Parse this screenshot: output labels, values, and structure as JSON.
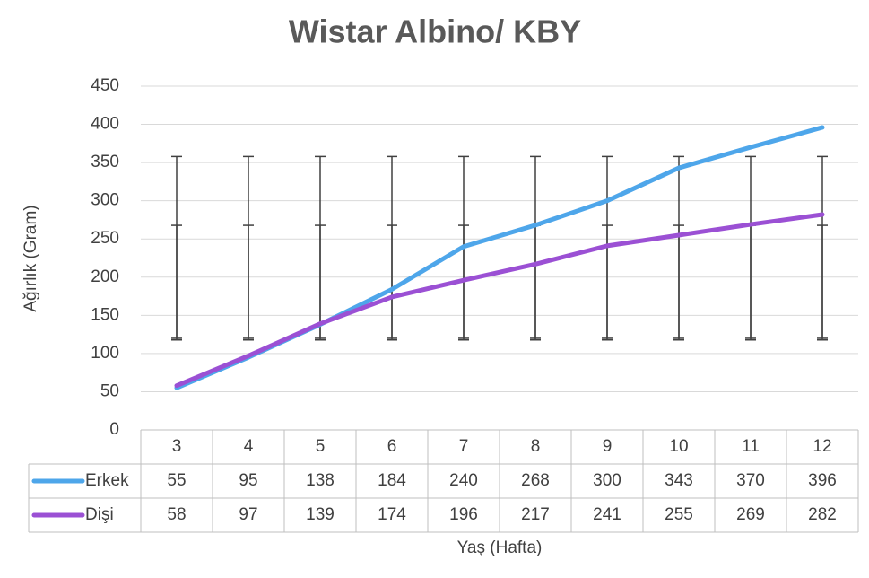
{
  "chart_data": {
    "type": "line",
    "title": "Wistar Albino/ KBY",
    "x_label": "Yaş (Hafta)",
    "y_label": "Ağırlık (Gram)",
    "categories": [
      "3",
      "4",
      "5",
      "6",
      "7",
      "8",
      "9",
      "10",
      "11",
      "12"
    ],
    "series": [
      {
        "name": "Erkek",
        "color": "#4ea6ea",
        "values": [
          55,
          95,
          138,
          184,
          240,
          268,
          300,
          343,
          370,
          396
        ],
        "error_bars": {
          "center": 238.9,
          "error": 119
        }
      },
      {
        "name": "Dişi",
        "color": "#9b50d4",
        "values": [
          58,
          97,
          139,
          174,
          196,
          217,
          241,
          255,
          269,
          282
        ],
        "error_bars": {
          "center": 192.8,
          "error": 75
        }
      }
    ],
    "ylim": [
      0,
      450
    ],
    "yticks": [
      0,
      50,
      100,
      150,
      200,
      250,
      300,
      350,
      400,
      450
    ],
    "grid": true,
    "data_table": true
  }
}
